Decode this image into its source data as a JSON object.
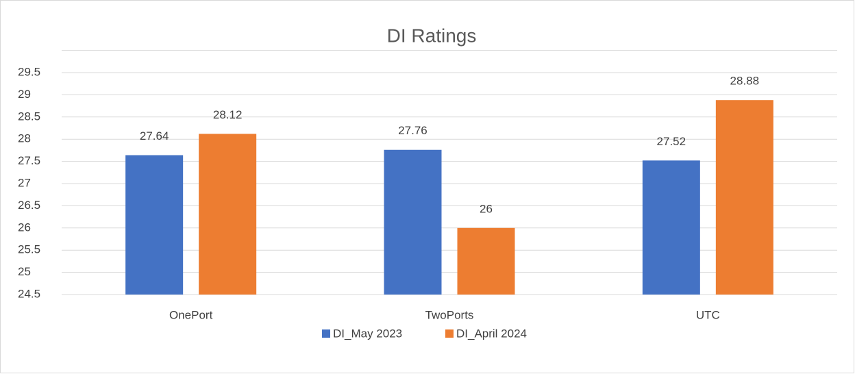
{
  "chart_data": {
    "type": "bar",
    "title": "DI Ratings",
    "categories": [
      "OnePort",
      "TwoPorts",
      "UTC"
    ],
    "series": [
      {
        "name": "DI_May 2023",
        "color": "#4472c4",
        "values": [
          27.64,
          27.76,
          27.52
        ]
      },
      {
        "name": "DI_April 2024",
        "color": "#ed7d31",
        "values": [
          28.12,
          26,
          28.88
        ]
      }
    ],
    "ylim": [
      24.5,
      30
    ],
    "yticks": [
      24.5,
      25,
      25.5,
      26,
      26.5,
      27,
      27.5,
      28,
      28.5,
      29,
      29.5
    ],
    "grid": true,
    "legend": "bottom"
  }
}
